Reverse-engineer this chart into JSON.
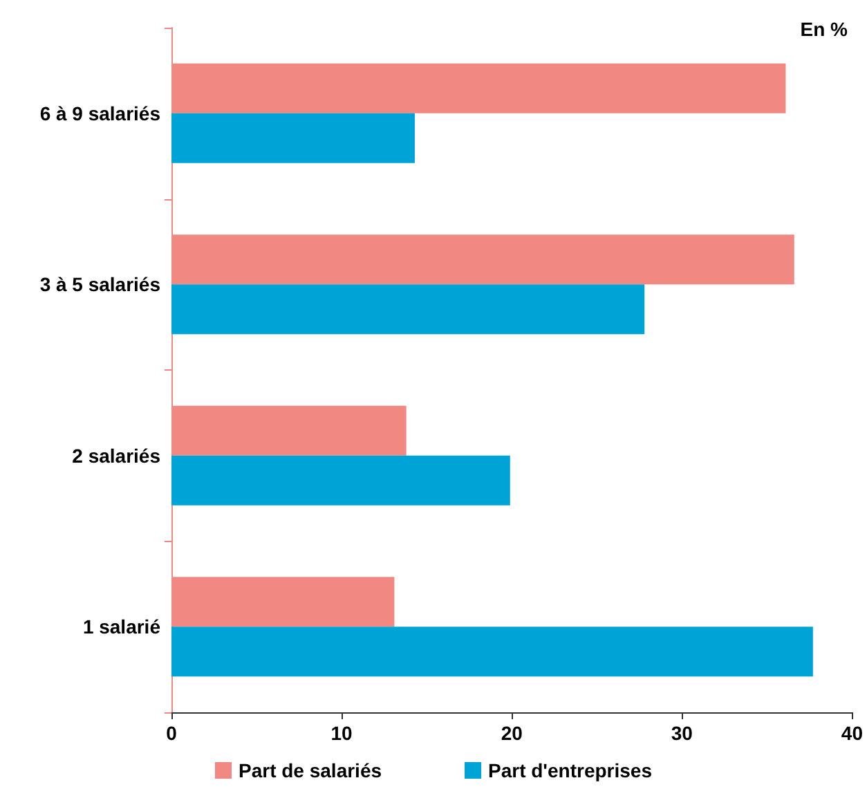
{
  "chart_data": {
    "type": "bar",
    "orientation": "horizontal",
    "categories": [
      "6 à 9 salariés",
      "3 à 5 salariés",
      "2 salariés",
      "1 salarié"
    ],
    "series": [
      {
        "name": "Part de salariés",
        "color": "#f28882",
        "values": [
          36.1,
          36.6,
          13.8,
          13.1
        ]
      },
      {
        "name": "Part d'entreprises",
        "color": "#00a3d5",
        "values": [
          14.3,
          27.8,
          19.9,
          37.7
        ]
      }
    ],
    "xlim": [
      0,
      40
    ],
    "xticks": [
      0,
      10,
      20,
      30,
      40
    ],
    "grid": false,
    "legend": "bottom",
    "annotations": [
      "En %"
    ]
  }
}
